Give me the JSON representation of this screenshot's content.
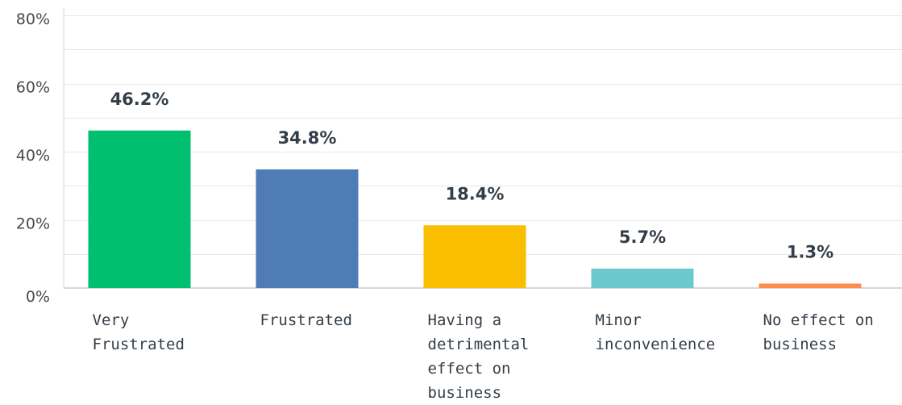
{
  "chart_data": {
    "type": "bar",
    "categories": [
      "Very\nFrustrated",
      "Frustrated",
      "Having a\ndetrimental\neffect on\nbusiness",
      "Minor\ninconvenience",
      "No effect on\nbusiness"
    ],
    "values": [
      46.2,
      34.8,
      18.4,
      5.7,
      1.3
    ],
    "value_labels": [
      "46.2%",
      "34.8%",
      "18.4%",
      "5.7%",
      "1.3%"
    ],
    "colors": [
      "#00bf6f",
      "#507cb6",
      "#f9be00",
      "#6bc8cd",
      "#ff8b4f"
    ],
    "ylim": [
      0,
      80
    ],
    "yticks": [
      0,
      20,
      40,
      60,
      80
    ],
    "ytick_labels": [
      "0%",
      "20%",
      "40%",
      "60%",
      "80%"
    ],
    "grid": true,
    "grid_minor": true,
    "title": "",
    "xlabel": "",
    "ylabel": ""
  }
}
